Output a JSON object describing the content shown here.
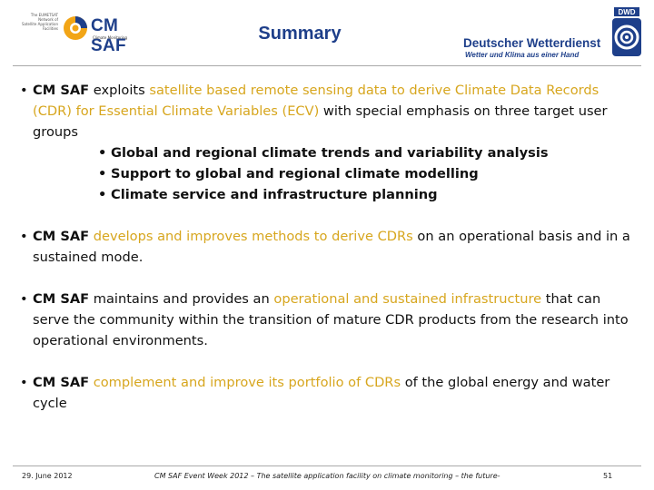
{
  "header": {
    "org_lines": [
      "The EUMETSAT",
      "Network of",
      "Satellite Application",
      "Facilities"
    ],
    "logo_text": "CM SAF",
    "logo_subtitle": "Climate Monitoring",
    "title": "Summary",
    "dwd_name": "Deutscher Wetterdienst",
    "dwd_slogan": "Wetter und Klima aus einer Hand",
    "dwd_badge": "DWD",
    "brand_color": "#1e3f8a",
    "highlight_color": "#d7a61e"
  },
  "bullets": [
    {
      "segments": [
        {
          "text": "CM SAF",
          "style": "bold"
        },
        {
          "text": " exploits ",
          "style": "normal"
        },
        {
          "text": "satellite based remote sensing data to derive Climate Data Records (CDR) for Essential Climate Variables (ECV)",
          "style": "highlight"
        },
        {
          "text": " with special emphasis on three target user groups",
          "style": "normal"
        }
      ],
      "sub_items": [
        "Global and regional climate trends and variability analysis",
        "Support to global and regional climate modelling",
        "Climate service and infrastructure planning"
      ]
    },
    {
      "segments": [
        {
          "text": "CM SAF",
          "style": "bold"
        },
        {
          "text": " ",
          "style": "normal"
        },
        {
          "text": "develops and improves methods to derive CDRs",
          "style": "highlight"
        },
        {
          "text": " on an operational basis and in a sustained mode.",
          "style": "normal"
        }
      ]
    },
    {
      "segments": [
        {
          "text": "CM SAF",
          "style": "bold"
        },
        {
          "text": " maintains and provides an ",
          "style": "normal"
        },
        {
          "text": "operational and sustained infrastructure",
          "style": "highlight"
        },
        {
          "text": " that can serve the community within the transition of mature CDR products from the research into operational environments.",
          "style": "normal"
        }
      ]
    },
    {
      "segments": [
        {
          "text": "CM SAF",
          "style": "bold"
        },
        {
          "text": " ",
          "style": "normal"
        },
        {
          "text": "complement and improve its portfolio of CDRs",
          "style": "highlight"
        },
        {
          "text": " of the global energy and water cycle",
          "style": "normal"
        }
      ]
    }
  ],
  "footer": {
    "date": "29. June 2012",
    "event": "CM SAF Event Week 2012 – The satellite application facility on climate monitoring – the future-",
    "page": "51"
  }
}
